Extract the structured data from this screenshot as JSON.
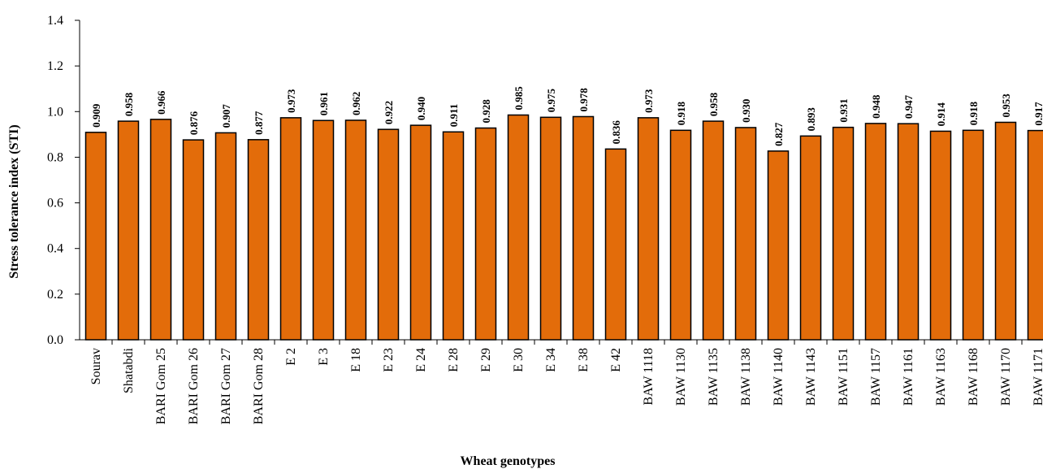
{
  "chart_data": {
    "type": "bar",
    "title": "",
    "xlabel": "Wheat genotypes",
    "ylabel": "Stress tolerance index (STI)",
    "ylim": [
      0,
      1.4
    ],
    "ytick_step": 0.2,
    "grid": false,
    "legend": "none",
    "bar_color": "#e36c0a",
    "categories": [
      "Sourav",
      "Shatabdi",
      "BARI Gom 25",
      "BARI Gom 26",
      "BARI Gom 27",
      "BARI Gom 28",
      "E 2",
      "E 3",
      "E 18",
      "E 23",
      "E 24",
      "E 28",
      "E 29",
      "E 30",
      "E 34",
      "E 38",
      "E 42",
      "BAW 1118",
      "BAW 1130",
      "BAW 1135",
      "BAW 1138",
      "BAW 1140",
      "BAW 1143",
      "BAW 1151",
      "BAW 1157",
      "BAW 1161",
      "BAW 1163",
      "BAW 1168",
      "BAW 1170",
      "BAW 1171"
    ],
    "values": [
      0.909,
      0.958,
      0.966,
      0.876,
      0.907,
      0.877,
      0.973,
      0.961,
      0.962,
      0.922,
      0.94,
      0.911,
      0.928,
      0.985,
      0.975,
      0.978,
      0.836,
      0.973,
      0.918,
      0.958,
      0.93,
      0.827,
      0.893,
      0.931,
      0.948,
      0.947,
      0.914,
      0.918,
      0.953,
      0.917
    ],
    "data_labels": [
      "0.909",
      "0.958",
      "0.966",
      "0.876",
      "0.907",
      "0.877",
      "0.973",
      "0.961",
      "0.962",
      "0.922",
      "0.940",
      "0.911",
      "0.928",
      "0.985",
      "0.975",
      "0.978",
      "0.836",
      "0.973",
      "0.918",
      "0.958",
      "0.930",
      "0.827",
      "0.893",
      "0.931",
      "0.948",
      "0.947",
      "0.914",
      "0.918",
      "0.953",
      "0.917"
    ],
    "yticks": [
      "0.0",
      "0.2",
      "0.4",
      "0.6",
      "0.8",
      "1.0",
      "1.2",
      "1.4"
    ]
  }
}
